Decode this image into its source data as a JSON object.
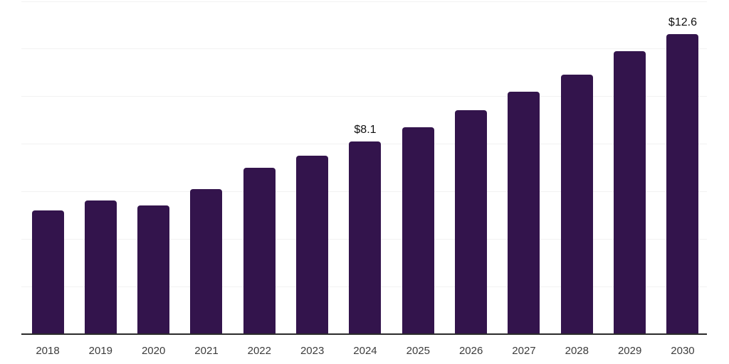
{
  "chart_data": {
    "type": "bar",
    "categories": [
      "2018",
      "2019",
      "2020",
      "2021",
      "2022",
      "2023",
      "2024",
      "2025",
      "2026",
      "2027",
      "2028",
      "2029",
      "2030"
    ],
    "values": [
      5.2,
      5.6,
      5.4,
      6.1,
      7.0,
      7.5,
      8.1,
      8.7,
      9.4,
      10.2,
      10.9,
      11.9,
      12.6
    ],
    "annotations": [
      {
        "category": "2024",
        "text": "$8.1"
      },
      {
        "category": "2030",
        "text": "$12.6"
      }
    ],
    "title": "",
    "xlabel": "",
    "ylabel": "",
    "ylim": [
      0,
      14
    ],
    "grid": "horizontal",
    "gridline_step": 2,
    "legend": "none",
    "colors": {
      "bar": "#33144c",
      "gridline": "#f2f2f2",
      "axis_line": "#2b2b2b",
      "tick_label": "#3c3c3c",
      "data_label": "#101010",
      "background": "#ffffff"
    }
  }
}
